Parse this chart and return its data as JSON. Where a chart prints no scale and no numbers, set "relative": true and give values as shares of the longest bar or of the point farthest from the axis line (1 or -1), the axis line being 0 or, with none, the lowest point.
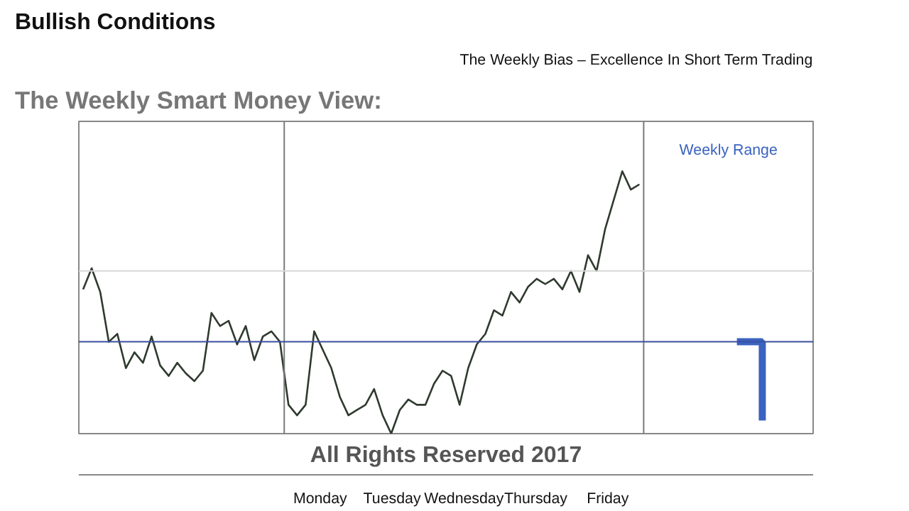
{
  "chart_data": {
    "type": "line",
    "title": "Bullish Conditions",
    "subtitle": "The Weekly Smart Money View:",
    "relative": true,
    "color": "#2f3a2f",
    "categories": [
      null,
      null,
      null,
      null,
      null,
      null,
      null,
      null,
      null,
      null,
      null,
      null,
      null,
      null,
      null,
      null,
      null,
      null,
      null,
      null,
      null,
      null,
      null,
      null,
      null,
      null,
      null,
      null,
      null,
      null,
      null,
      null,
      null,
      null,
      null,
      null,
      null,
      null,
      null,
      null,
      null,
      null,
      null,
      null,
      null,
      null,
      null,
      null,
      null,
      null,
      null,
      null,
      null,
      null,
      null,
      null,
      null,
      null,
      null,
      null,
      null,
      null,
      null,
      null,
      null,
      null
    ],
    "values": [
      0.55,
      0.63,
      0.54,
      0.35,
      0.38,
      0.25,
      0.31,
      0.27,
      0.37,
      0.26,
      0.22,
      0.27,
      0.23,
      0.2,
      0.24,
      0.46,
      0.41,
      0.43,
      0.34,
      0.41,
      0.28,
      0.37,
      0.39,
      0.35,
      0.11,
      0.07,
      0.11,
      0.39,
      0.32,
      0.25,
      0.14,
      0.07,
      0.09,
      0.11,
      0.17,
      0.07,
      0,
      0.09,
      0.13,
      0.11,
      0.11,
      0.19,
      0.24,
      0.22,
      0.11,
      0.25,
      0.34,
      0.38,
      0.47,
      0.45,
      0.54,
      0.5,
      0.56,
      0.59,
      0.57,
      0.59,
      0.55,
      0.62,
      0.54,
      0.68,
      0.62,
      0.78,
      0.89,
      1,
      0.93,
      0.95
    ],
    "ref_lines": [
      {
        "axis": "y",
        "value": 0.35,
        "color": "#3a4fa0"
      },
      {
        "axis": "y",
        "value": 0.62,
        "color": "#d8d8d8"
      }
    ],
    "annotations": [
      "Weekly Range",
      "The Weekly Bias – Excellence In Short Term Trading",
      "All Rights Reserved 2017",
      "Monday",
      "Tuesday",
      "Wednesday",
      "Thursday",
      "Friday"
    ],
    "grid": false
  }
}
